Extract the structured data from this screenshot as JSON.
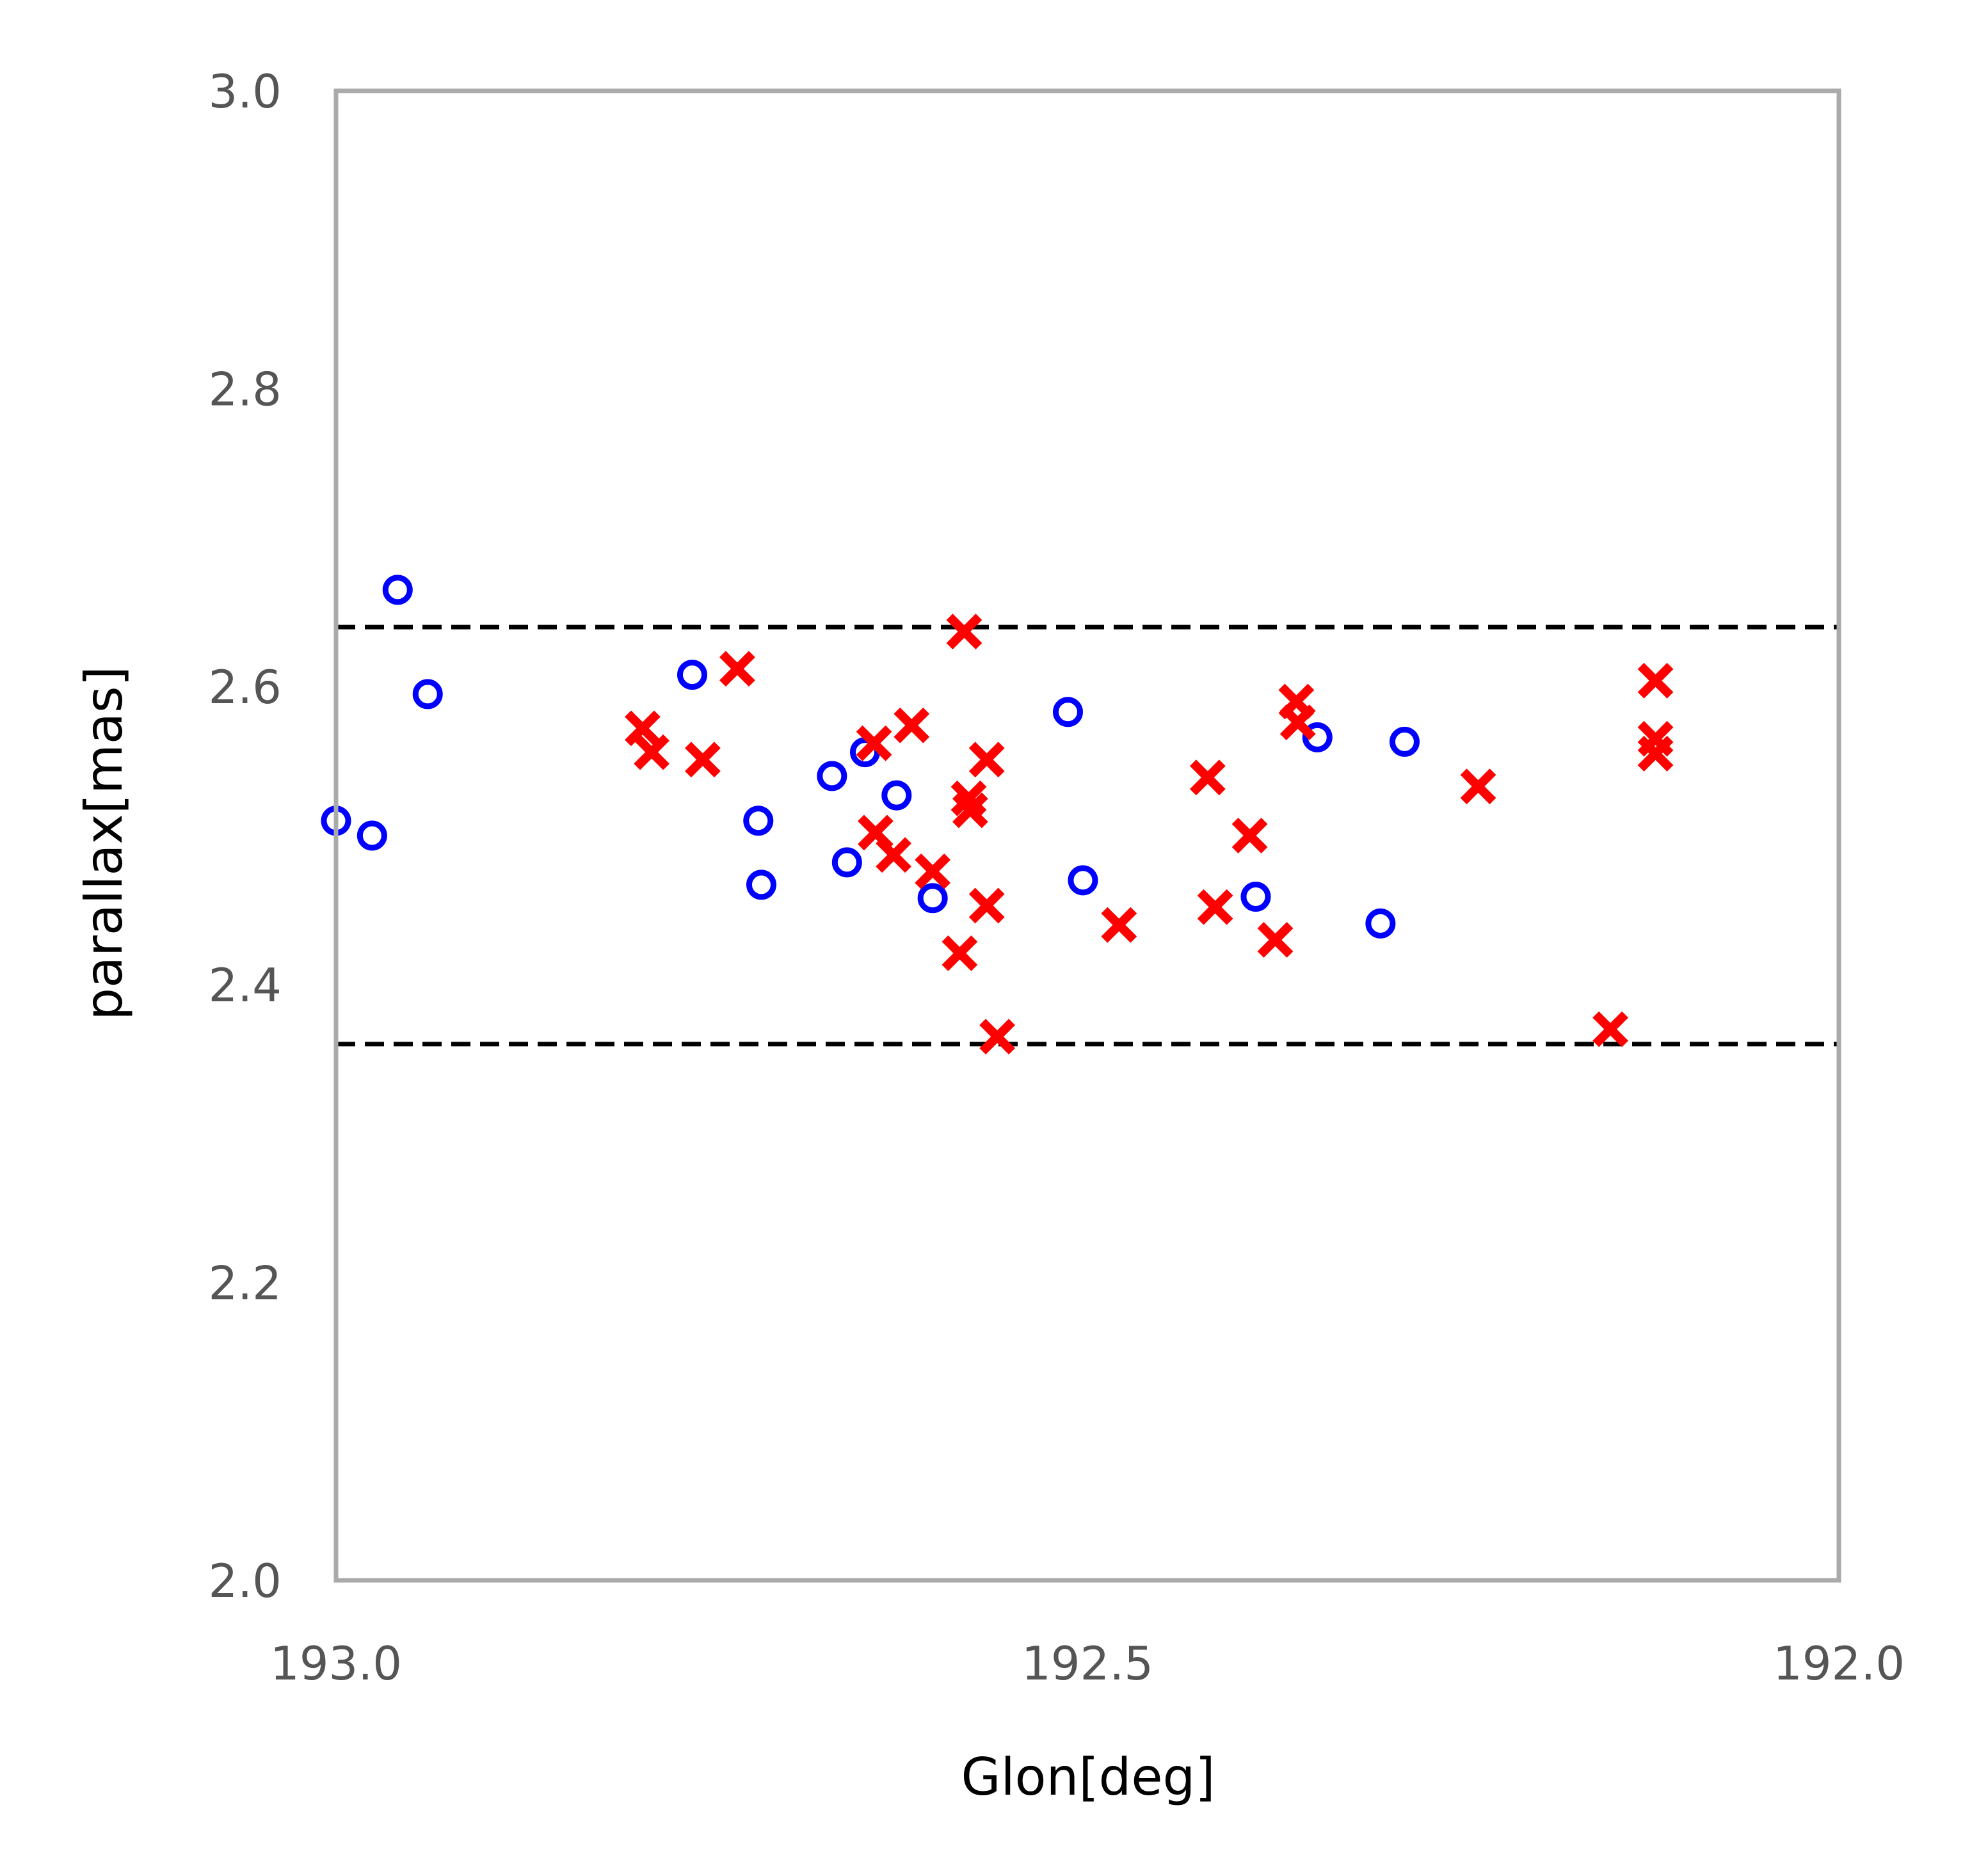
{
  "chart_data": {
    "type": "scatter",
    "xlabel": "Glon[deg]",
    "ylabel": "parallax[mas]",
    "xlim": [
      193.0,
      192.0
    ],
    "ylim": [
      2.0,
      3.0
    ],
    "x_reversed": true,
    "xticks": [
      "193.0",
      "192.5",
      "192.0"
    ],
    "xtick_values": [
      193.0,
      192.5,
      192.0
    ],
    "yticks": [
      "2.0",
      "2.2",
      "2.4",
      "2.6",
      "2.8",
      "3.0"
    ],
    "ytick_values": [
      2.0,
      2.2,
      2.4,
      2.6,
      2.8,
      3.0
    ],
    "grid": false,
    "frame_color": "#aaaaaa",
    "reference_lines": [
      {
        "y": 2.64,
        "style": "dashed",
        "color": "#000000"
      },
      {
        "y": 2.36,
        "style": "dashed",
        "color": "#000000"
      }
    ],
    "series": [
      {
        "marker": "open-circle",
        "color": "#0000ff",
        "points": [
          [
            193.0,
            2.51
          ],
          [
            192.976,
            2.5
          ],
          [
            192.959,
            2.665
          ],
          [
            192.939,
            2.595
          ],
          [
            192.763,
            2.608
          ],
          [
            192.719,
            2.51
          ],
          [
            192.717,
            2.467
          ],
          [
            192.67,
            2.54
          ],
          [
            192.66,
            2.482
          ],
          [
            192.648,
            2.556
          ],
          [
            192.627,
            2.527
          ],
          [
            192.603,
            2.458
          ],
          [
            192.513,
            2.583
          ],
          [
            192.503,
            2.47
          ],
          [
            192.388,
            2.459
          ],
          [
            192.347,
            2.566
          ],
          [
            192.305,
            2.441
          ],
          [
            192.289,
            2.563
          ]
        ]
      },
      {
        "marker": "x",
        "color": "#ff0000",
        "points": [
          [
            192.796,
            2.572
          ],
          [
            192.79,
            2.556
          ],
          [
            192.756,
            2.551
          ],
          [
            192.733,
            2.612
          ],
          [
            192.642,
            2.562
          ],
          [
            192.641,
            2.502
          ],
          [
            192.629,
            2.487
          ],
          [
            192.617,
            2.574
          ],
          [
            192.603,
            2.476
          ],
          [
            192.585,
            2.421
          ],
          [
            192.582,
            2.637
          ],
          [
            192.579,
            2.525
          ],
          [
            192.578,
            2.517
          ],
          [
            192.567,
            2.551
          ],
          [
            192.567,
            2.453
          ],
          [
            192.56,
            2.365
          ],
          [
            192.479,
            2.44
          ],
          [
            192.42,
            2.539
          ],
          [
            192.415,
            2.452
          ],
          [
            192.392,
            2.5
          ],
          [
            192.375,
            2.43
          ],
          [
            192.361,
            2.59
          ],
          [
            192.36,
            2.576
          ],
          [
            192.24,
            2.533
          ],
          [
            192.152,
            2.37
          ],
          [
            192.122,
            2.604
          ],
          [
            192.122,
            2.565
          ],
          [
            192.122,
            2.555
          ]
        ]
      }
    ]
  }
}
